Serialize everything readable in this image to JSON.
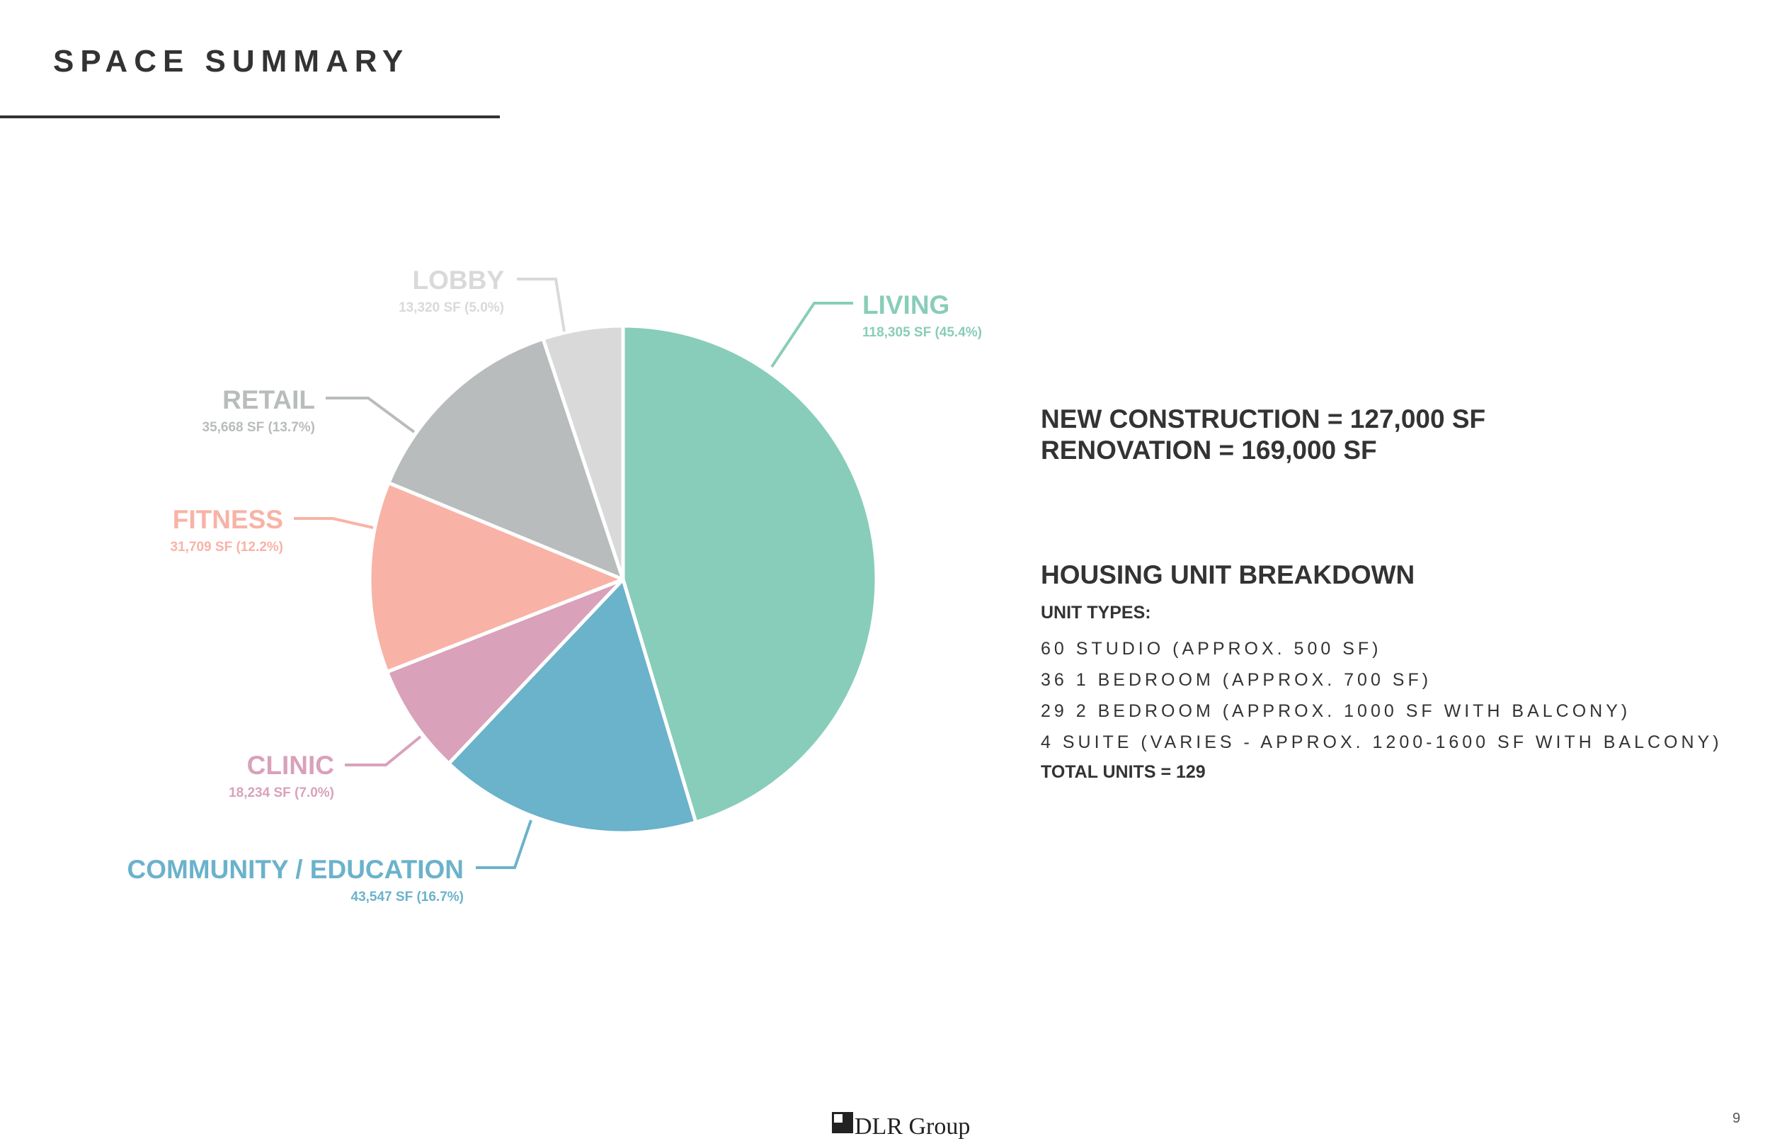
{
  "page": {
    "title": "SPACE SUMMARY",
    "page_number": "9",
    "logo_text": "DLR Group"
  },
  "summary": {
    "new_construction": "NEW CONSTRUCTION = 127,000 SF",
    "renovation": "RENOVATION = 169,000 SF"
  },
  "housing": {
    "title": "HOUSING UNIT BREAKDOWN",
    "unit_types_label": "UNIT TYPES:",
    "units": [
      "60 STUDIO (APPROX. 500 SF)",
      "36 1 BEDROOM (APPROX. 700 SF)",
      "29 2 BEDROOM (APPROX. 1000 SF WITH BALCONY)",
      "4 SUITE (VARIES - APPROX. 1200-1600 SF WITH BALCONY)"
    ],
    "total": "TOTAL UNITS = 129"
  },
  "chart_data": {
    "type": "pie",
    "title": "",
    "slices": [
      {
        "name": "LIVING",
        "value": 118305,
        "percent": 45.4,
        "detail": "118,305 SF (45.4%)",
        "color": "#88CDB9"
      },
      {
        "name": "COMMUNITY / EDUCATION",
        "value": 43547,
        "percent": 16.7,
        "detail": "43,547 SF (16.7%)",
        "color": "#6BB2CB"
      },
      {
        "name": "CLINIC",
        "value": 18234,
        "percent": 7.0,
        "detail": "18,234 SF (7.0%)",
        "color": "#D9A1BA"
      },
      {
        "name": "FITNESS",
        "value": 31709,
        "percent": 12.2,
        "detail": "31,709 SF (12.2%)",
        "color": "#F8B3A6"
      },
      {
        "name": "RETAIL",
        "value": 35668,
        "percent": 13.7,
        "detail": "35,668 SF (13.7%)",
        "color": "#B9BCBD"
      },
      {
        "name": "LOBBY",
        "value": 13320,
        "percent": 5.0,
        "detail": "13,320 SF (5.0%)",
        "color": "#D9D9D9"
      }
    ],
    "start": "12 o'clock",
    "direction": "clockwise",
    "legend": "callout labels"
  }
}
